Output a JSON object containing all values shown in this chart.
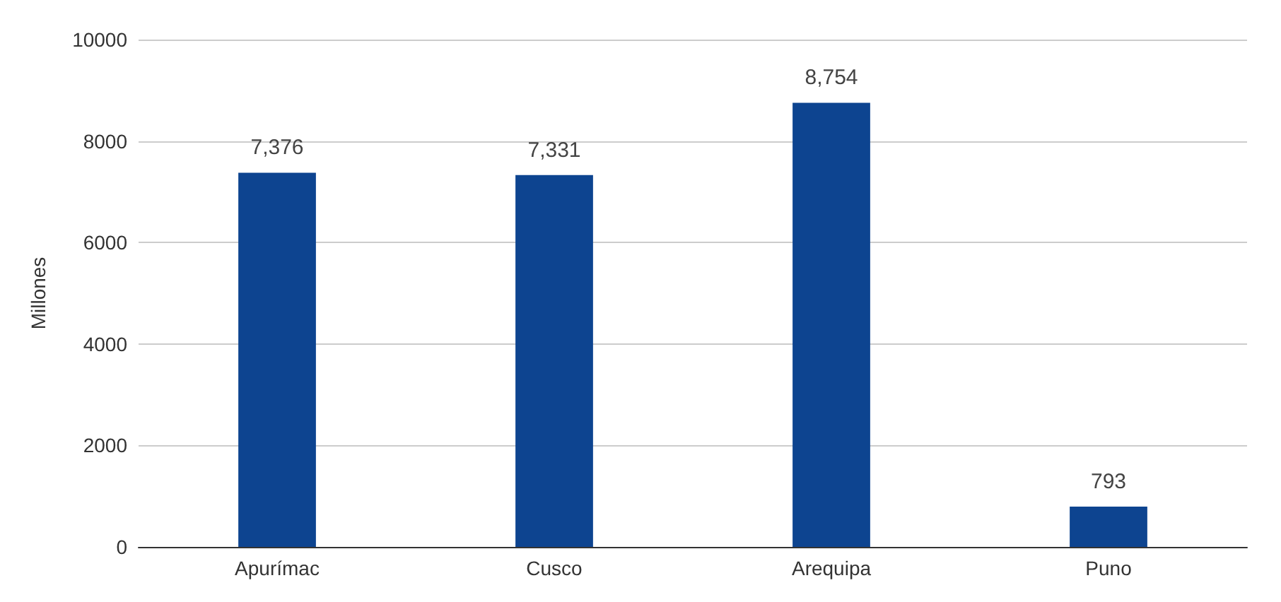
{
  "chart_data": {
    "type": "bar",
    "ylabel": "Millones",
    "categories": [
      "Apurímac",
      "Cusco",
      "Arequipa",
      "Puno"
    ],
    "values": [
      7376,
      7331,
      8754,
      793
    ],
    "color": "#0d4490",
    "value_labels": [
      "7,376",
      "7,331",
      "8,754",
      "793"
    ],
    "ylim": [
      0,
      10000
    ],
    "yticks": [
      0,
      2000,
      4000,
      6000,
      8000,
      10000
    ],
    "grid": "y"
  }
}
